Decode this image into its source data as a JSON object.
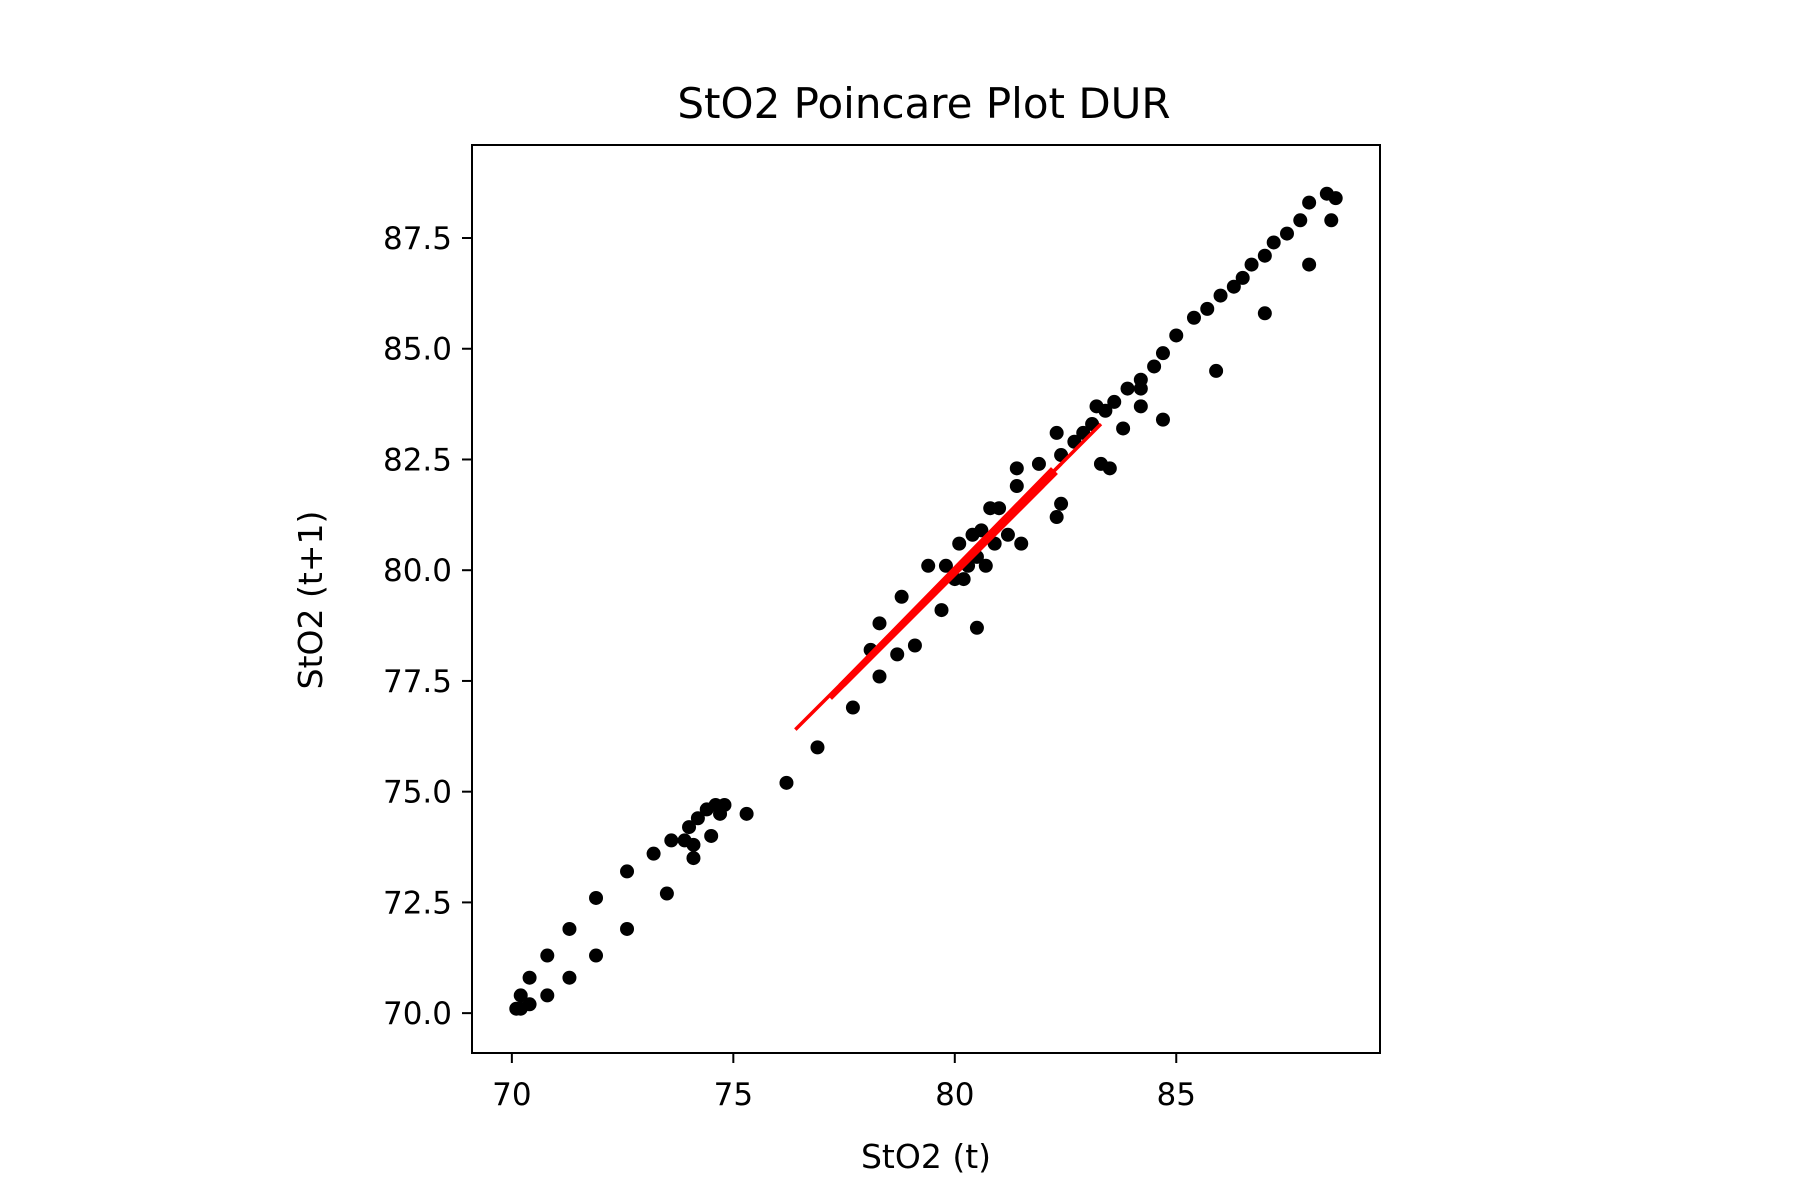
{
  "chart_data": {
    "type": "scatter",
    "title": "StO2 Poincare Plot DUR",
    "xlabel": "StO2 (t)",
    "ylabel": "StO2 (t+1)",
    "xlim": [
      69.1,
      89.6
    ],
    "ylim": [
      69.1,
      89.6
    ],
    "xticks": [
      70,
      75,
      80,
      85
    ],
    "xtick_labels": [
      "70",
      "75",
      "80",
      "85"
    ],
    "yticks": [
      70.0,
      72.5,
      75.0,
      77.5,
      80.0,
      82.5,
      85.0,
      87.5
    ],
    "ytick_labels": [
      "70.0",
      "72.5",
      "75.0",
      "77.5",
      "80.0",
      "82.5",
      "85.0",
      "87.5"
    ],
    "grid": false,
    "point_color": "#000000",
    "line_color": "#ff0000",
    "points": [
      [
        70.1,
        70.1
      ],
      [
        70.2,
        70.4
      ],
      [
        70.2,
        70.1
      ],
      [
        70.4,
        70.2
      ],
      [
        70.4,
        70.8
      ],
      [
        70.8,
        71.3
      ],
      [
        70.8,
        70.4
      ],
      [
        71.3,
        71.9
      ],
      [
        71.3,
        70.8
      ],
      [
        71.9,
        72.6
      ],
      [
        71.9,
        71.3
      ],
      [
        72.6,
        73.2
      ],
      [
        72.6,
        71.9
      ],
      [
        73.2,
        73.6
      ],
      [
        73.5,
        72.7
      ],
      [
        73.6,
        73.9
      ],
      [
        73.9,
        73.9
      ],
      [
        74.0,
        74.2
      ],
      [
        74.1,
        73.5
      ],
      [
        74.1,
        73.8
      ],
      [
        74.2,
        74.4
      ],
      [
        74.4,
        74.6
      ],
      [
        74.5,
        74.0
      ],
      [
        74.6,
        74.7
      ],
      [
        74.7,
        74.5
      ],
      [
        74.8,
        74.7
      ],
      [
        75.3,
        74.5
      ],
      [
        76.2,
        75.2
      ],
      [
        76.9,
        76.0
      ],
      [
        77.7,
        76.9
      ],
      [
        78.1,
        78.2
      ],
      [
        78.3,
        78.8
      ],
      [
        78.3,
        77.6
      ],
      [
        78.7,
        78.1
      ],
      [
        78.8,
        79.4
      ],
      [
        79.1,
        78.3
      ],
      [
        79.4,
        80.1
      ],
      [
        79.7,
        79.1
      ],
      [
        79.8,
        80.1
      ],
      [
        80.0,
        79.8
      ],
      [
        80.1,
        80.6
      ],
      [
        80.2,
        79.8
      ],
      [
        80.3,
        80.1
      ],
      [
        80.4,
        80.8
      ],
      [
        80.5,
        80.3
      ],
      [
        80.5,
        78.7
      ],
      [
        80.6,
        80.9
      ],
      [
        80.7,
        80.1
      ],
      [
        80.8,
        81.4
      ],
      [
        80.9,
        80.6
      ],
      [
        81.0,
        81.4
      ],
      [
        81.2,
        80.8
      ],
      [
        81.4,
        81.9
      ],
      [
        81.4,
        82.3
      ],
      [
        81.5,
        80.6
      ],
      [
        81.9,
        82.4
      ],
      [
        82.3,
        83.1
      ],
      [
        82.3,
        81.2
      ],
      [
        82.4,
        82.6
      ],
      [
        82.4,
        81.5
      ],
      [
        82.7,
        82.9
      ],
      [
        82.9,
        83.1
      ],
      [
        83.1,
        83.3
      ],
      [
        83.2,
        83.7
      ],
      [
        83.3,
        82.4
      ],
      [
        83.4,
        83.6
      ],
      [
        83.5,
        82.3
      ],
      [
        83.6,
        83.8
      ],
      [
        83.8,
        83.2
      ],
      [
        83.9,
        84.1
      ],
      [
        84.2,
        84.3
      ],
      [
        84.2,
        83.7
      ],
      [
        84.2,
        84.1
      ],
      [
        84.5,
        84.6
      ],
      [
        84.7,
        83.4
      ],
      [
        84.7,
        84.9
      ],
      [
        85.0,
        85.3
      ],
      [
        85.4,
        85.7
      ],
      [
        85.7,
        85.9
      ],
      [
        85.9,
        84.5
      ],
      [
        86.0,
        86.2
      ],
      [
        86.3,
        86.4
      ],
      [
        86.5,
        86.6
      ],
      [
        86.7,
        86.9
      ],
      [
        87.0,
        87.1
      ],
      [
        87.0,
        85.8
      ],
      [
        87.2,
        87.4
      ],
      [
        87.5,
        87.6
      ],
      [
        87.8,
        87.9
      ],
      [
        88.0,
        88.3
      ],
      [
        88.0,
        86.9
      ],
      [
        88.4,
        88.5
      ],
      [
        88.5,
        87.9
      ],
      [
        88.6,
        88.4
      ]
    ],
    "fit_lines": [
      [
        [
          76.4,
          76.4
        ],
        [
          83.3,
          83.3
        ]
      ],
      [
        [
          77.5,
          77.4
        ],
        [
          82.3,
          82.2
        ]
      ],
      [
        [
          77.4,
          77.4
        ],
        [
          82.2,
          82.3
        ]
      ],
      [
        [
          77.2,
          77.1
        ],
        [
          82.0,
          81.9
        ]
      ],
      [
        [
          77.6,
          77.6
        ],
        [
          82.4,
          82.4
        ]
      ]
    ]
  }
}
